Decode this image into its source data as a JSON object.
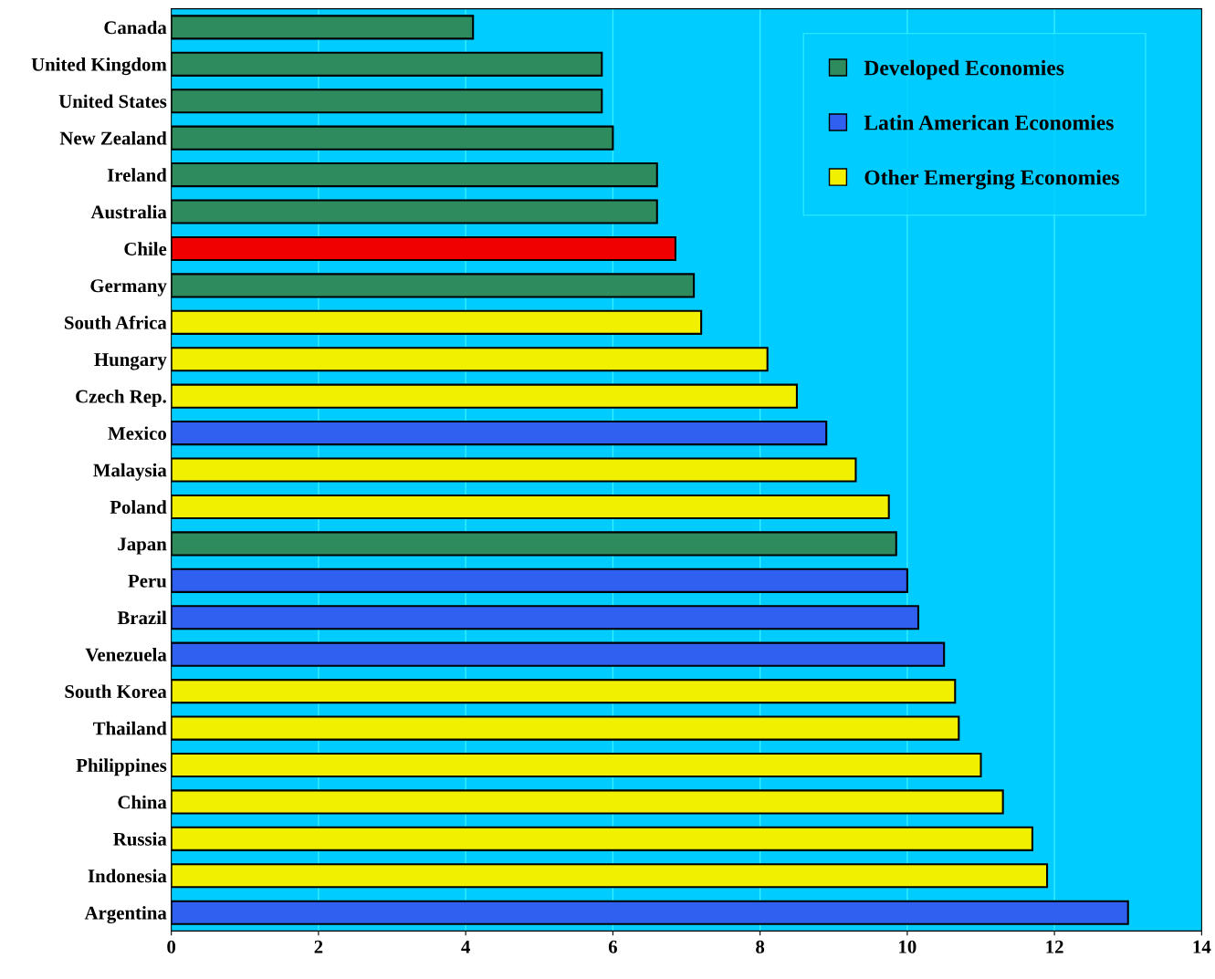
{
  "chart_data": {
    "type": "bar",
    "orientation": "horizontal",
    "categories": [
      "Canada",
      "United Kingdom",
      "United States",
      "New Zealand",
      "Ireland",
      "Australia",
      "Chile",
      "Germany",
      "South Africa",
      "Hungary",
      "Czech Rep.",
      "Mexico",
      "Malaysia",
      "Poland",
      "Japan",
      "Peru",
      "Brazil",
      "Venezuela",
      "South Korea",
      "Thailand",
      "Philippines",
      "China",
      "Russia",
      "Indonesia",
      "Argentina"
    ],
    "series": [
      {
        "name": "Developed Economies",
        "color": "#2e8b5e",
        "values": [
          4.1,
          5.85,
          5.85,
          6.0,
          6.6,
          6.6,
          null,
          7.1,
          null,
          null,
          null,
          null,
          null,
          null,
          9.85,
          null,
          null,
          null,
          null,
          null,
          null,
          null,
          null,
          null,
          null
        ]
      },
      {
        "name": "Latin American Economies",
        "color": "#3060f0",
        "values": [
          null,
          null,
          null,
          null,
          null,
          null,
          null,
          null,
          null,
          null,
          null,
          8.9,
          null,
          null,
          null,
          10.0,
          10.15,
          10.5,
          null,
          null,
          null,
          null,
          null,
          null,
          13.0
        ]
      },
      {
        "name": "Other Emerging Economies",
        "color": "#f0f000",
        "values": [
          null,
          null,
          null,
          null,
          null,
          null,
          null,
          null,
          7.2,
          8.1,
          8.5,
          null,
          9.3,
          9.75,
          null,
          null,
          null,
          null,
          10.65,
          10.7,
          11.0,
          11.3,
          11.7,
          11.9,
          null
        ]
      },
      {
        "color": "#f00000",
        "values": [
          null,
          null,
          null,
          null,
          null,
          null,
          6.85,
          null,
          null,
          null,
          null,
          null,
          null,
          null,
          null,
          null,
          null,
          null,
          null,
          null,
          null,
          null,
          null,
          null,
          null
        ]
      }
    ],
    "xlim": [
      0,
      14
    ],
    "xticks": [
      0,
      2,
      4,
      6,
      8,
      10,
      12,
      14
    ],
    "grid": "x",
    "legend": "top right"
  }
}
